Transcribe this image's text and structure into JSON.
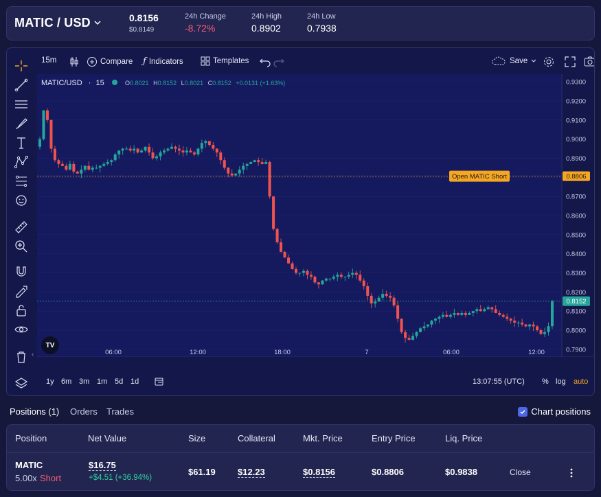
{
  "ticker": {
    "pair": "MATIC / USD",
    "price": "0.8156",
    "price_sub": "$0.8149",
    "change_label": "24h Change",
    "change_value": "-8.72%",
    "high_label": "24h High",
    "high_value": "0.8902",
    "low_label": "24h Low",
    "low_value": "0.7938"
  },
  "toolbar": {
    "interval": "15m",
    "compare": "Compare",
    "indicators": "Indicators",
    "templates": "Templates",
    "save": "Save"
  },
  "legend": {
    "symbol": "MATIC/USD",
    "interval": "15",
    "o_label": "O",
    "o": "0.8021",
    "h_label": "H",
    "h": "0.8152",
    "l_label": "L",
    "l": "0.8021",
    "c_label": "C",
    "c": "0.8152",
    "change": "+0.0131 (+1.63%)"
  },
  "order_line": {
    "label": "Open MATIC Short",
    "price": "0.8806"
  },
  "last_price_tag": "0.8152",
  "bottombar": {
    "ranges": [
      "1y",
      "6m",
      "3m",
      "1m",
      "5d",
      "1d"
    ],
    "time": "13:07:55 (UTC)",
    "pct": "%",
    "log": "log",
    "auto": "auto"
  },
  "positions": {
    "tabs": [
      "Positions (1)",
      "Orders",
      "Trades"
    ],
    "chart_positions": "Chart positions",
    "headers": [
      "Position",
      "Net Value",
      "Size",
      "Collateral",
      "Mkt. Price",
      "Entry Price",
      "Liq. Price"
    ],
    "row": {
      "market": "MATIC",
      "leverage": "5.00x",
      "side": "Short",
      "net_value": "$16.75",
      "pnl": "+$4.51 (+36.94%)",
      "size": "$61.19",
      "collateral": "$12.23",
      "mkt_price": "$0.8156",
      "entry_price": "$0.8806",
      "liq_price": "$0.9838",
      "close": "Close"
    }
  },
  "colors": {
    "up": "#26a69a",
    "down": "#ef5350",
    "order_line": "#f5a623",
    "accent": "#4d68e6"
  },
  "chart_data": {
    "type": "candlestick",
    "y_ticks": [
      "0.9300",
      "0.9200",
      "0.9100",
      "0.9000",
      "0.8900",
      "0.8800",
      "0.8700",
      "0.8600",
      "0.8500",
      "0.8400",
      "0.8300",
      "0.8200",
      "0.8100",
      "0.8000",
      "0.7900"
    ],
    "x_ticks": [
      "06:00",
      "12:00",
      "18:00",
      "7",
      "06:00",
      "12:00"
    ],
    "ylim": [
      0.786,
      0.934
    ],
    "close_series": [
      0.9,
      0.915,
      0.91,
      0.895,
      0.889,
      0.887,
      0.886,
      0.884,
      0.887,
      0.883,
      0.882,
      0.884,
      0.886,
      0.884,
      0.885,
      0.885,
      0.886,
      0.887,
      0.888,
      0.889,
      0.892,
      0.894,
      0.895,
      0.895,
      0.894,
      0.895,
      0.893,
      0.894,
      0.896,
      0.893,
      0.89,
      0.891,
      0.893,
      0.894,
      0.895,
      0.896,
      0.895,
      0.894,
      0.893,
      0.894,
      0.893,
      0.892,
      0.895,
      0.898,
      0.899,
      0.897,
      0.895,
      0.893,
      0.889,
      0.885,
      0.882,
      0.881,
      0.882,
      0.884,
      0.886,
      0.887,
      0.888,
      0.889,
      0.888,
      0.887,
      0.888,
      0.87,
      0.853,
      0.846,
      0.841,
      0.838,
      0.835,
      0.832,
      0.83,
      0.83,
      0.831,
      0.829,
      0.828,
      0.825,
      0.824,
      0.826,
      0.827,
      0.827,
      0.828,
      0.829,
      0.828,
      0.828,
      0.829,
      0.83,
      0.829,
      0.826,
      0.823,
      0.818,
      0.814,
      0.815,
      0.817,
      0.819,
      0.818,
      0.817,
      0.813,
      0.806,
      0.799,
      0.796,
      0.795,
      0.797,
      0.799,
      0.801,
      0.802,
      0.803,
      0.805,
      0.806,
      0.807,
      0.808,
      0.807,
      0.808,
      0.809,
      0.808,
      0.809,
      0.808,
      0.809,
      0.81,
      0.811,
      0.81,
      0.811,
      0.812,
      0.811,
      0.809,
      0.808,
      0.807,
      0.806,
      0.805,
      0.804,
      0.804,
      0.803,
      0.802,
      0.803,
      0.802,
      0.8,
      0.798,
      0.799,
      0.8021,
      0.8152
    ]
  }
}
